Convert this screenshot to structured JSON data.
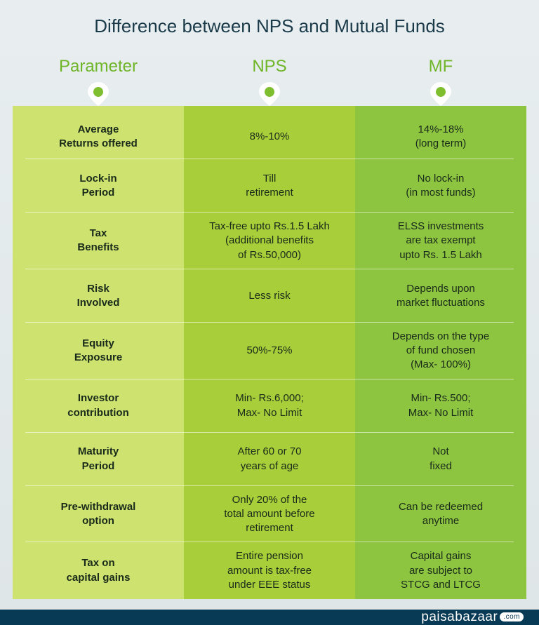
{
  "title": "Difference between NPS and Mutual Funds",
  "headers": {
    "param": "Parameter",
    "nps": "NPS",
    "mf": "MF"
  },
  "colors": {
    "title_text": "#1a3a4a",
    "header_text": "#6fb528",
    "col_param_bg": "#cde26f",
    "col_nps_bg": "#a8ce3a",
    "col_mf_bg": "#8dc540",
    "pin_fill": "#7fbf2f",
    "footer_bg": "#083a56",
    "divider": "rgba(255,255,255,0.55)"
  },
  "rows": [
    {
      "param": "Average\nReturns offered",
      "nps": "8%-10%",
      "mf": "14%-18%\n(long term)"
    },
    {
      "param": "Lock-in\nPeriod",
      "nps": "Till\nretirement",
      "mf": "No lock-in\n(in most funds)"
    },
    {
      "param": "Tax\nBenefits",
      "nps": "Tax-free upto Rs.1.5 Lakh\n(additional benefits\nof Rs.50,000)",
      "mf": "ELSS investments\nare tax exempt\nupto Rs. 1.5 Lakh"
    },
    {
      "param": "Risk\nInvolved",
      "nps": "Less risk",
      "mf": "Depends upon\nmarket fluctuations"
    },
    {
      "param": "Equity\nExposure",
      "nps": "50%-75%",
      "mf": "Depends on the type\nof fund chosen\n(Max- 100%)"
    },
    {
      "param": "Investor\ncontribution",
      "nps": "Min- Rs.6,000;\nMax- No Limit",
      "mf": "Min- Rs.500;\nMax- No Limit"
    },
    {
      "param": "Maturity\nPeriod",
      "nps": "After 60 or 70\nyears of age",
      "mf": "Not\nfixed"
    },
    {
      "param": "Pre-withdrawal\noption",
      "nps": "Only 20% of the\ntotal amount before\nretirement",
      "mf": "Can be redeemed\nanytime"
    },
    {
      "param": "Tax on\ncapital gains",
      "nps": "Entire pension\namount is tax-free\nunder EEE status",
      "mf": "Capital gains\nare subject to\nSTCG and LTCG"
    }
  ],
  "brand": {
    "name": "paisabazaar",
    "dom": ".com"
  }
}
